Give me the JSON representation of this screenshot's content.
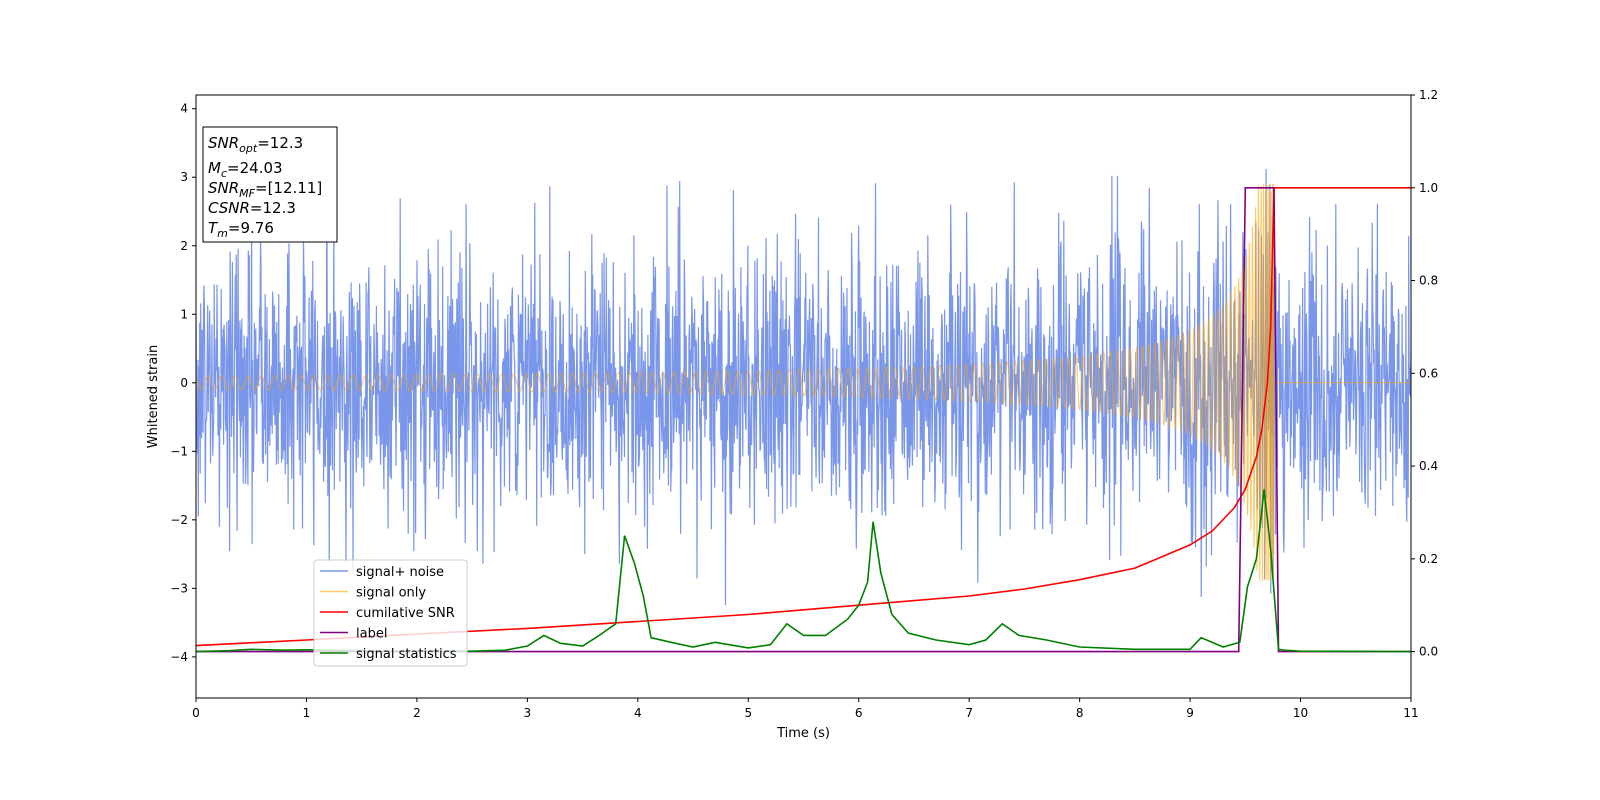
{
  "chart_data": {
    "type": "line",
    "title": "",
    "xlabel": "Time (s)",
    "ylabel": "Whitened strain",
    "xlim": [
      0,
      11
    ],
    "ylim": [
      -4.6,
      4.2
    ],
    "y2lim": [
      -0.1,
      1.2
    ],
    "xticks": [
      "0",
      "1",
      "2",
      "3",
      "4",
      "5",
      "6",
      "7",
      "8",
      "9",
      "10",
      "11"
    ],
    "yticks": [
      "−4",
      "−3",
      "−2",
      "−1",
      "0",
      "1",
      "2",
      "3",
      "4"
    ],
    "y2ticks": [
      "0.0",
      "0.2",
      "0.4",
      "0.6",
      "0.8",
      "1.0",
      "1.2"
    ],
    "grid": false,
    "legend_placement": "lower-left",
    "info_box": [
      {
        "sym": "SNR",
        "sub": "opt",
        "val": "=12.3"
      },
      {
        "sym": "M",
        "sub": "c",
        "val": "=24.03"
      },
      {
        "sym": "SNR",
        "sub": "MF",
        "val": "=[12.11]"
      },
      {
        "sym": "CSNR",
        "sub": "",
        "val": "=12.3"
      },
      {
        "sym": "T",
        "sub": "m",
        "val": "=9.76"
      }
    ],
    "series": [
      {
        "name": "signal+ noise",
        "color": "#4169e1",
        "axis": "left",
        "kind": "noise",
        "noise_sigma": 1.0,
        "noise_extreme": 3.8,
        "x_range": [
          0,
          11
        ]
      },
      {
        "name": "signal only",
        "color": "#ffa500",
        "axis": "left",
        "kind": "chirp",
        "merger_time": 9.76,
        "peak_amplitude": 2.9,
        "x_range": [
          0,
          11
        ]
      },
      {
        "name": "cumilative SNR",
        "color": "#ff0000",
        "axis": "right",
        "x": [
          0,
          1,
          2,
          3,
          4,
          5,
          6,
          7,
          7.5,
          8,
          8.5,
          9,
          9.2,
          9.4,
          9.5,
          9.6,
          9.65,
          9.7,
          9.73,
          9.76,
          11
        ],
        "y": [
          0.013,
          0.025,
          0.038,
          0.05,
          0.065,
          0.08,
          0.1,
          0.12,
          0.135,
          0.155,
          0.18,
          0.23,
          0.26,
          0.31,
          0.35,
          0.42,
          0.48,
          0.58,
          0.7,
          1.0,
          1.0
        ]
      },
      {
        "name": "label",
        "color": "#800080",
        "axis": "right",
        "x": [
          0,
          9.44,
          9.5,
          9.76,
          9.8,
          11
        ],
        "y": [
          0,
          0,
          1,
          1,
          0,
          0
        ]
      },
      {
        "name": "signal statistics",
        "color": "#008000",
        "axis": "right",
        "x": [
          0,
          0.3,
          0.5,
          0.8,
          1.0,
          1.5,
          2.0,
          2.5,
          2.8,
          3.0,
          3.15,
          3.3,
          3.5,
          3.65,
          3.8,
          3.88,
          3.97,
          4.05,
          4.12,
          4.3,
          4.5,
          4.7,
          5.0,
          5.2,
          5.35,
          5.5,
          5.7,
          5.9,
          6.0,
          6.08,
          6.13,
          6.2,
          6.3,
          6.45,
          6.7,
          7.0,
          7.15,
          7.3,
          7.45,
          7.7,
          8.0,
          8.5,
          9.0,
          9.1,
          9.3,
          9.45,
          9.52,
          9.6,
          9.67,
          9.73,
          9.8,
          9.85,
          10,
          11
        ],
        "y": [
          0,
          0.002,
          0.005,
          0.003,
          0.004,
          0.002,
          0.001,
          0.001,
          0.003,
          0.012,
          0.035,
          0.018,
          0.012,
          0.035,
          0.06,
          0.25,
          0.19,
          0.12,
          0.03,
          0.02,
          0.01,
          0.02,
          0.008,
          0.015,
          0.06,
          0.035,
          0.035,
          0.07,
          0.1,
          0.15,
          0.28,
          0.17,
          0.08,
          0.04,
          0.025,
          0.015,
          0.025,
          0.06,
          0.035,
          0.025,
          0.01,
          0.005,
          0.005,
          0.03,
          0.01,
          0.02,
          0.14,
          0.2,
          0.35,
          0.22,
          0.005,
          0.003,
          0.001,
          0
        ]
      }
    ]
  }
}
